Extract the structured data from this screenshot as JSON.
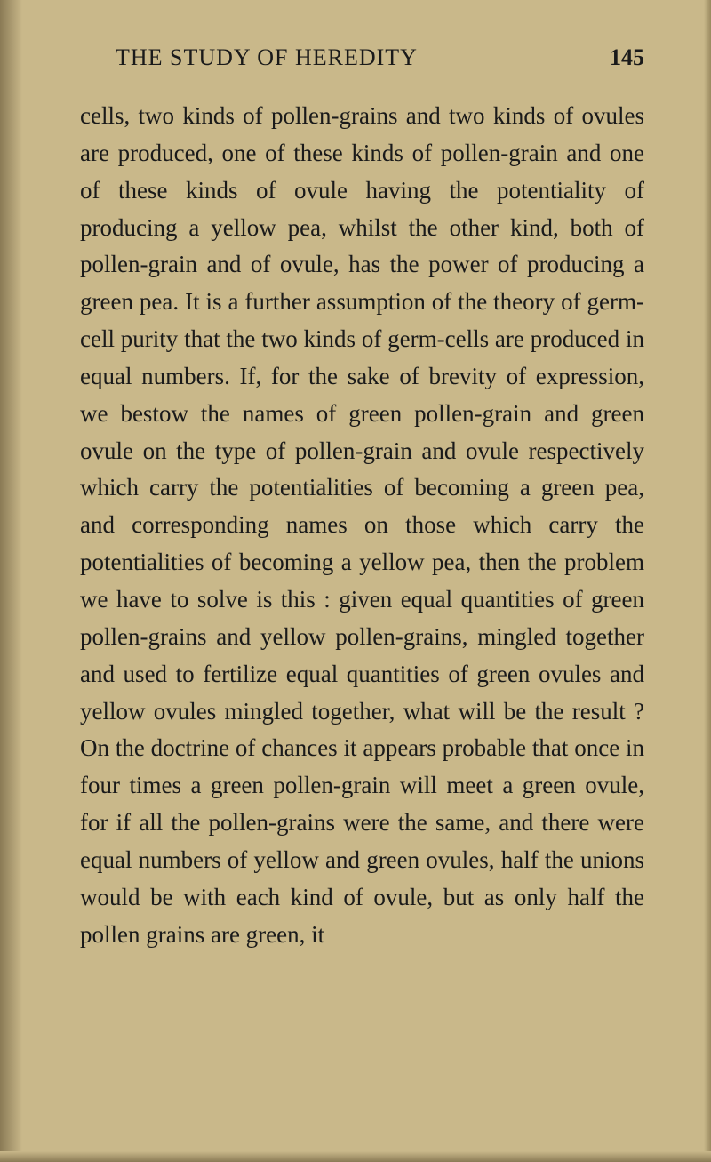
{
  "header": {
    "running_title": "THE STUDY OF HEREDITY",
    "page_number": "145"
  },
  "body": {
    "text": "cells, two kinds of pollen-grains and two kinds of ovules are produced, one of these kinds of pollen-grain and one of these kinds of ovule having the potentiality of producing a yellow pea, whilst the other kind, both of pollen-grain and of ovule, has the power of producing a green pea. It is a further assumption of the theory of germ-cell purity that the two kinds of germ-cells are produced in equal numbers. If, for the sake of brevity of expression, we bestow the names of green pollen-grain and green ovule on the type of pollen-grain and ovule respectively which carry the potentialities of becoming a green pea, and corresponding names on those which carry the potentialities of becoming a yellow pea, then the problem we have to solve is this : given equal quantities of green pollen-grains and yellow pollen-grains, mingled together and used to fertilize equal quantities of green ovules and yellow ovules mingled together, what will be the result ? On the doctrine of chances it appears probable that once in four times a green pollen-grain will meet a green ovule, for if all the pollen-grains were the same, and there were equal numbers of yellow and green ovules, half the unions would be with each kind of ovule, but as only half the pollen grains are green, it"
  },
  "colors": {
    "background": "#c9b88a",
    "text": "#1a1a1a",
    "shadow_dark": "#8a7a55"
  },
  "typography": {
    "body_fontsize": 27,
    "header_fontsize": 26,
    "line_height": 1.55,
    "font_family": "Georgia, Times New Roman, serif"
  }
}
